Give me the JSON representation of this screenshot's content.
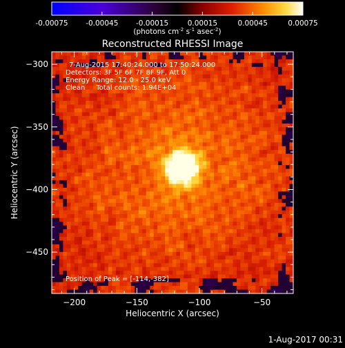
{
  "colors": {
    "background": "#000000",
    "foreground": "#ffffff",
    "colormap": "hot-with-blue-negative"
  },
  "colorbar": {
    "tick_labels": [
      "-0.00075",
      "-0.00045",
      "-0.00015",
      "0.00015",
      "0.00045",
      "0.00075"
    ],
    "tick_values": [
      -0.00075,
      -0.00045,
      -0.00015,
      0.00015,
      0.00045,
      0.00075
    ],
    "range": [
      -0.00075,
      0.00075
    ],
    "unit_label_parts": {
      "a": "(photons cm",
      "a_sup": "-2",
      "b": " s",
      "b_sup": "-1",
      "c": " asec",
      "c_sup": "-2",
      "d": ")"
    }
  },
  "plot": {
    "title": "Reconstructed RHESSI Image",
    "xlabel": "Heliocentric X (arcsec)",
    "ylabel": "Heliocentric Y (arcsec)",
    "xlim": [
      -218,
      -25
    ],
    "ylim": [
      -483,
      -290
    ],
    "x_ticks": [
      -200,
      -150,
      -100,
      -50
    ],
    "y_ticks": [
      -300,
      -350,
      -400,
      -450
    ],
    "x_tick_labels": [
      "−200",
      "−150",
      "−100",
      "−50"
    ],
    "y_tick_labels": [
      "−300",
      "−350",
      "−400",
      "−450"
    ],
    "annotations": [
      "7-Aug-2015 17:40:24.000 to 17:50:24.000",
      "Detectors: 3F 5F 6F 7F 8F 9F, Att 0",
      "Energy Range: 12.0 - 25.0 keV",
      "Clean     Total counts: 1.94E+04"
    ],
    "peak_label": "Position of Peak = [-114,-382]",
    "peak": [
      -114,
      -382
    ]
  },
  "footer": {
    "timestamp": "1-Aug-2017 00:31"
  }
}
